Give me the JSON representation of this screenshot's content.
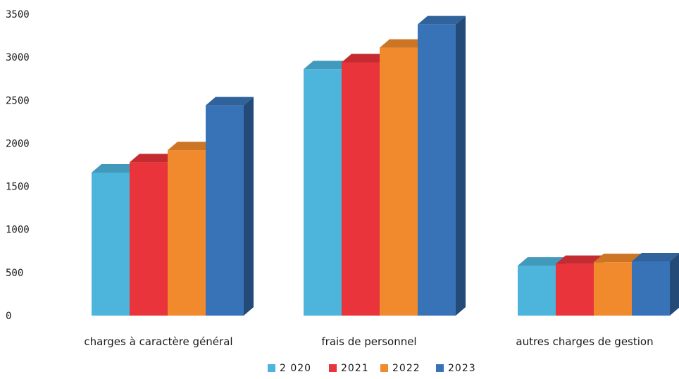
{
  "chart_data": {
    "type": "bar",
    "style": "3d-clustered-column",
    "categories": [
      "charges à caractère général",
      "frais de personnel",
      "autres charges de gestion"
    ],
    "series": [
      {
        "name": "2 020",
        "values": [
          1660,
          2860,
          580
        ],
        "color": "#4db4dc"
      },
      {
        "name": "2021",
        "values": [
          1780,
          2940,
          600
        ],
        "color": "#e8343a"
      },
      {
        "name": "2022",
        "values": [
          1920,
          3110,
          620
        ],
        "color": "#f08a2c"
      },
      {
        "name": "2023",
        "values": [
          2440,
          3380,
          630
        ],
        "color": "#3873b8"
      }
    ],
    "yticks": [
      "0",
      "500",
      "1000",
      "1500",
      "2000",
      "2500",
      "3000",
      "3500"
    ],
    "ylim": [
      0,
      3500
    ],
    "legend": "bottom-center",
    "grid": false
  }
}
